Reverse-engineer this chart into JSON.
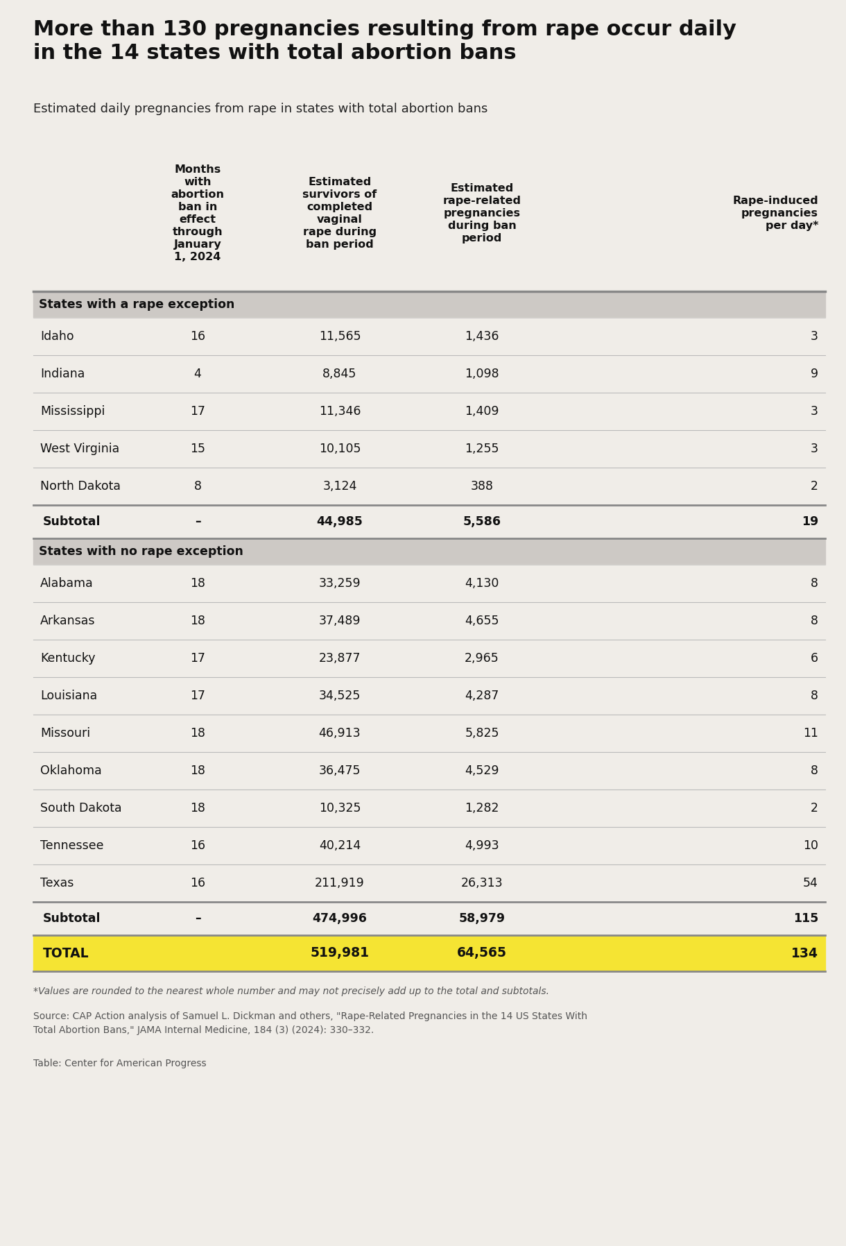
{
  "title": "More than 130 pregnancies resulting from rape occur daily\nin the 14 states with total abortion bans",
  "subtitle": "Estimated daily pregnancies from rape in states with total abortion bans",
  "background_color": "#f0ede8",
  "col_headers": [
    "Months\nwith\nabortion\nban in\neffect\nthrough\nJanuary\n1, 2024",
    "Estimated\nsurvivors of\ncompleted\nvaginal\nrape during\nban period",
    "Estimated\nrape-related\npregnancies\nduring ban\nperiod",
    "Rape-induced\npregnancies\nper day*"
  ],
  "section1_header": "States with a rape exception",
  "section1_rows": [
    [
      "Idaho",
      "16",
      "11,565",
      "1,436",
      "3"
    ],
    [
      "Indiana",
      "4",
      "8,845",
      "1,098",
      "9"
    ],
    [
      "Mississippi",
      "17",
      "11,346",
      "1,409",
      "3"
    ],
    [
      "West Virginia",
      "15",
      "10,105",
      "1,255",
      "3"
    ],
    [
      "North Dakota",
      "8",
      "3,124",
      "388",
      "2"
    ]
  ],
  "section1_subtotal": [
    "Subtotal",
    "–",
    "44,985",
    "5,586",
    "19"
  ],
  "section2_header": "States with no rape exception",
  "section2_rows": [
    [
      "Alabama",
      "18",
      "33,259",
      "4,130",
      "8"
    ],
    [
      "Arkansas",
      "18",
      "37,489",
      "4,655",
      "8"
    ],
    [
      "Kentucky",
      "17",
      "23,877",
      "2,965",
      "6"
    ],
    [
      "Louisiana",
      "17",
      "34,525",
      "4,287",
      "8"
    ],
    [
      "Missouri",
      "18",
      "46,913",
      "5,825",
      "11"
    ],
    [
      "Oklahoma",
      "18",
      "36,475",
      "4,529",
      "8"
    ],
    [
      "South Dakota",
      "18",
      "10,325",
      "1,282",
      "2"
    ],
    [
      "Tennessee",
      "16",
      "40,214",
      "4,993",
      "10"
    ],
    [
      "Texas",
      "16",
      "211,919",
      "26,313",
      "54"
    ]
  ],
  "section2_subtotal": [
    "Subtotal",
    "–",
    "474,996",
    "58,979",
    "115"
  ],
  "total_row": [
    "TOTAL",
    "",
    "519,981",
    "64,565",
    "134"
  ],
  "footnote1": "*Values are rounded to the nearest whole number and may not precisely add up to the total and subtotals.",
  "footnote2": "Source: CAP Action analysis of Samuel L. Dickman and others, \"Rape-Related Pregnancies in the 14 US States With\nTotal Abortion Bans,\" JAMA Internal Medicine, 184 (3) (2024): 330–332.",
  "footnote3": "Table: Center for American Progress",
  "section_header_bg": "#cdc9c5",
  "total_row_bg": "#f5e433",
  "subtotal_bg": "#f0ede8",
  "row_bg": "#f0ede8",
  "header_bg": "#f0ede8",
  "divider_light": "#bbbbbb",
  "divider_dark": "#888888"
}
